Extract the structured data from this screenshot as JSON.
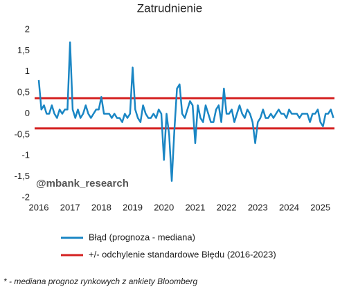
{
  "chart_data": {
    "type": "line",
    "title": "Zatrudnienie",
    "watermark": "@mbank_research",
    "footnote": "* - mediana prognoz rynkowych z ankiety Bloomberg",
    "xlim": [
      2016,
      2025.45
    ],
    "xticks": [
      2016,
      2017,
      2018,
      2019,
      2020,
      2021,
      2022,
      2023,
      2024,
      2025
    ],
    "ylim": [
      -2,
      2
    ],
    "yticks": [
      2,
      {
        "value": 1.5,
        "label": "1,5"
      },
      1,
      {
        "value": 0.5,
        "label": "0,5"
      },
      0,
      {
        "value": -0.5,
        "label": "-0,5"
      },
      -1,
      {
        "value": -1.5,
        "label": "-1,5"
      },
      -2
    ],
    "grid": false,
    "series": [
      {
        "name": "Błąd (prognoza - mediana)",
        "color": "#1a86c4",
        "x": [
          2016,
          2016.083,
          2016.167,
          2016.25,
          2016.333,
          2016.417,
          2016.5,
          2016.583,
          2016.667,
          2016.75,
          2016.833,
          2016.917,
          2017,
          2017.083,
          2017.167,
          2017.25,
          2017.333,
          2017.417,
          2017.5,
          2017.583,
          2017.667,
          2017.75,
          2017.833,
          2017.917,
          2018,
          2018.083,
          2018.167,
          2018.25,
          2018.333,
          2018.417,
          2018.5,
          2018.583,
          2018.667,
          2018.75,
          2018.833,
          2018.917,
          2019,
          2019.083,
          2019.167,
          2019.25,
          2019.333,
          2019.417,
          2019.5,
          2019.583,
          2019.667,
          2019.75,
          2019.833,
          2019.917,
          2020,
          2020.083,
          2020.167,
          2020.25,
          2020.333,
          2020.417,
          2020.5,
          2020.583,
          2020.667,
          2020.75,
          2020.833,
          2020.917,
          2021,
          2021.083,
          2021.167,
          2021.25,
          2021.333,
          2021.417,
          2021.5,
          2021.583,
          2021.667,
          2021.75,
          2021.833,
          2021.917,
          2022,
          2022.083,
          2022.167,
          2022.25,
          2022.333,
          2022.417,
          2022.5,
          2022.583,
          2022.667,
          2022.75,
          2022.833,
          2022.917,
          2023,
          2023.083,
          2023.167,
          2023.25,
          2023.333,
          2023.417,
          2023.5,
          2023.583,
          2023.667,
          2023.75,
          2023.833,
          2023.917,
          2024,
          2024.083,
          2024.167,
          2024.25,
          2024.333,
          2024.417,
          2024.5,
          2024.583,
          2024.667,
          2024.75,
          2024.833,
          2024.917,
          2025,
          2025.083,
          2025.167,
          2025.25,
          2025.333,
          2025.417
        ],
        "values": [
          0.8,
          0.1,
          0.2,
          0,
          0,
          0.2,
          0,
          -0.1,
          0.1,
          0,
          0.1,
          0.1,
          1.7,
          0.1,
          -0.1,
          0.1,
          -0.1,
          0,
          0.2,
          0,
          -0.1,
          0,
          0.1,
          0.1,
          0.4,
          0,
          0,
          0,
          -0.1,
          0,
          -0.1,
          -0.1,
          -0.2,
          0,
          -0.1,
          0,
          1.1,
          0.1,
          -0.1,
          -0.2,
          0.2,
          0,
          -0.1,
          -0.1,
          0,
          -0.1,
          0.1,
          0,
          -1.1,
          0,
          -0.5,
          -1.6,
          -0.4,
          0.6,
          0.7,
          0,
          -0.1,
          0.1,
          0.3,
          0.2,
          -0.7,
          0.2,
          -0.1,
          -0.2,
          0.2,
          0,
          -0.2,
          -0.2,
          0.1,
          0.2,
          -0.2,
          0.6,
          0,
          0,
          0.1,
          -0.2,
          0,
          0.2,
          0,
          -0.1,
          0.1,
          0,
          -0.2,
          -0.7,
          -0.2,
          -0.1,
          0.1,
          -0.1,
          -0.1,
          0,
          -0.1,
          0,
          0.1,
          0,
          0,
          -0.1,
          0.1,
          0,
          0,
          0,
          -0.1,
          0,
          0,
          0,
          -0.2,
          0,
          0,
          0.1,
          -0.2,
          -0.3,
          0,
          0,
          0.1,
          -0.1
        ]
      }
    ],
    "bands": {
      "name": "+/- odchylenie standardowe Błędu (2016-2023)",
      "color": "#d42020",
      "values": [
        0.37,
        -0.35
      ]
    }
  }
}
